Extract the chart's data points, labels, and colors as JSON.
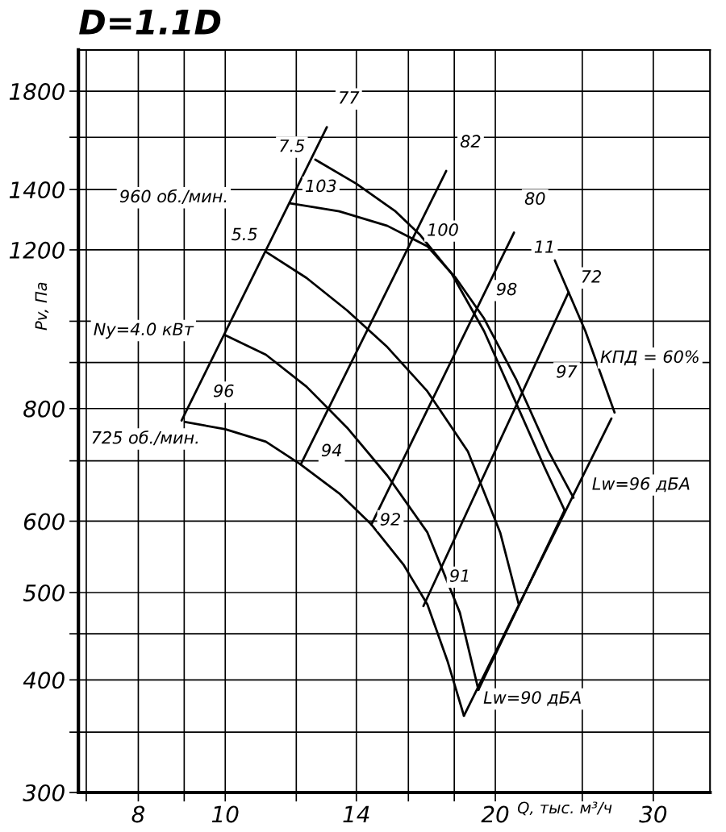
{
  "chart_data": {
    "type": "line",
    "title": "D=1.1D",
    "xlabel": "Q, тыс. м³/ч",
    "ylabel": "Pv, Па",
    "log": "xy",
    "grid": true,
    "marker": "none",
    "line_style": "solid",
    "xlim": [
      6.86,
      34.7
    ],
    "ylim": [
      300,
      2000
    ],
    "xticks": [
      {
        "value": 7,
        "label": null
      },
      8,
      {
        "value": 9,
        "label": null
      },
      10,
      {
        "value": 12,
        "label": null
      },
      14,
      {
        "value": 16,
        "label": null
      },
      {
        "value": 18,
        "label": null
      },
      20,
      {
        "value": 25,
        "label": null
      },
      30
    ],
    "yticks": [
      300,
      {
        "value": 350,
        "label": null
      },
      400,
      {
        "value": 450,
        "label": null
      },
      500,
      600,
      {
        "value": 700,
        "label": null
      },
      800,
      {
        "value": 900,
        "label": null
      },
      {
        "value": 1000,
        "label": null
      },
      1200,
      1400,
      {
        "value": 1600,
        "label": null
      },
      1800
    ],
    "series": [
      {
        "color": "#000000",
        "x": [
          9.02,
          10,
          11.1,
          12.1,
          13.4,
          14.55,
          15.8,
          16.8,
          17.7,
          18.45
        ],
        "values": [
          773,
          759,
          735,
          695,
          644,
          595,
          537,
          485,
          419,
          365
        ]
      },
      {
        "color": "#000000",
        "x": [
          10,
          11.1,
          12.32,
          13.67,
          15.16,
          16.8,
          18.26,
          19.15
        ],
        "values": [
          965,
          918,
          846,
          762,
          674,
          583,
          475,
          390
        ]
      },
      {
        "color": "#000000",
        "x": [
          11.1,
          12.32,
          13.67,
          15.16,
          16.8,
          18.64,
          20.25,
          21.24
        ],
        "values": [
          1194,
          1117,
          1028,
          936,
          836,
          717,
          583,
          485
        ]
      },
      {
        "color": "#000000",
        "x": [
          11.8,
          13.4,
          15.16,
          16.8,
          18.07,
          19.43,
          21.1,
          22.93,
          24.44
        ],
        "values": [
          1352,
          1324,
          1276,
          1211,
          1117,
          1007,
          862,
          717,
          637
        ]
      },
      {
        "color": "#000000",
        "x": [
          12.6,
          14,
          15.48,
          16.46,
          17.89,
          19.43,
          21.1,
          22.7,
          23.89
        ],
        "values": [
          1511,
          1421,
          1324,
          1249,
          1128,
          975,
          811,
          688,
          617
        ]
      },
      {
        "color": "#000000",
        "x": [
          23.3,
          25.2,
          27.16
        ],
        "values": [
          1168,
          975,
          792
        ]
      },
      {
        "color": "#000000",
        "x": [
          8.94,
          12.98
        ],
        "values": [
          776,
          1642
        ]
      },
      {
        "color": "#000000",
        "x": [
          12.15,
          17.63
        ],
        "values": [
          695,
          1468
        ]
      },
      {
        "color": "#000000",
        "x": [
          14.55,
          20.98
        ],
        "values": [
          595,
          1254
        ]
      },
      {
        "color": "#000000",
        "x": [
          16.63,
          24.14
        ],
        "values": [
          483,
          1077
        ]
      },
      {
        "color": "#000000",
        "x": [
          18.45,
          26.94
        ],
        "values": [
          365,
          780
        ]
      },
      {
        "color": "#000000",
        "x": [
          19.15,
          23.89
        ],
        "values": [
          390,
          617
        ]
      }
    ],
    "annotations": [
      "960 об./мин.",
      "7.5",
      "103",
      "5.5",
      "Ny=4.0 кВт",
      "96",
      "725 об./мин.",
      "94",
      "92",
      "91",
      "100",
      "98",
      "97",
      "11",
      "77",
      "82",
      "80",
      "72",
      "КПД = 60%",
      "Lw=96 дБА",
      "Lw=90 дБА"
    ]
  }
}
